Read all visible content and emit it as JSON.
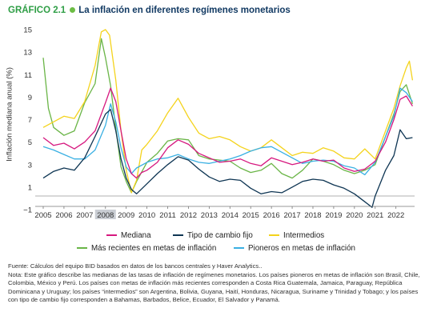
{
  "header": {
    "label": "GRÁFICO 2.1",
    "title": "La inflación en diferentes regímenes monetarios"
  },
  "chart_data": {
    "type": "line",
    "title": "La inflación en diferentes regímenes monetarios",
    "xlabel": "",
    "ylabel": "Inflación mediana anual (%)",
    "ylim": [
      -1,
      15
    ],
    "xlim": [
      2005,
      2022.9
    ],
    "yticks": [
      -1,
      1,
      3,
      5,
      7,
      9,
      11,
      13,
      15
    ],
    "xticks": [
      "2005",
      "2006",
      "2007",
      "2008",
      "2009",
      "2010",
      "2011",
      "2012",
      "2013",
      "2014",
      "2015",
      "2016",
      "2017",
      "2018",
      "2019",
      "2020",
      "2021",
      "2022"
    ],
    "highlighted_tick": "2008",
    "grid": false,
    "legend_position": "bottom",
    "series": [
      {
        "name": "Mediana",
        "color": "#d6187f",
        "points": [
          [
            2005,
            5.4
          ],
          [
            2005.5,
            4.7
          ],
          [
            2006,
            4.9
          ],
          [
            2006.5,
            4.4
          ],
          [
            2007,
            5
          ],
          [
            2007.5,
            6
          ],
          [
            2008,
            8.5
          ],
          [
            2008.25,
            9.8
          ],
          [
            2008.5,
            8.6
          ],
          [
            2008.75,
            6
          ],
          [
            2009,
            3.5
          ],
          [
            2009.25,
            2.2
          ],
          [
            2009.5,
            1.8
          ],
          [
            2009.75,
            2.3
          ],
          [
            2010,
            2.5
          ],
          [
            2010.5,
            3.2
          ],
          [
            2011,
            4.5
          ],
          [
            2011.5,
            5.2
          ],
          [
            2012,
            4.8
          ],
          [
            2012.5,
            4
          ],
          [
            2013,
            3.6
          ],
          [
            2013.5,
            3.2
          ],
          [
            2014,
            3.3
          ],
          [
            2014.5,
            3.5
          ],
          [
            2015,
            3.1
          ],
          [
            2015.5,
            2.9
          ],
          [
            2016,
            3.6
          ],
          [
            2016.5,
            3.3
          ],
          [
            2017,
            3
          ],
          [
            2017.5,
            3.2
          ],
          [
            2018,
            3.5
          ],
          [
            2018.5,
            3.3
          ],
          [
            2019,
            3.4
          ],
          [
            2019.5,
            2.7
          ],
          [
            2020,
            2.4
          ],
          [
            2020.5,
            2.6
          ],
          [
            2021,
            3.3
          ],
          [
            2021.5,
            5
          ],
          [
            2021.9,
            7
          ],
          [
            2022.2,
            8.8
          ],
          [
            2022.5,
            9.1
          ],
          [
            2022.8,
            8.2
          ]
        ]
      },
      {
        "name": "Tipo de cambio fijo",
        "color": "#0e3553",
        "points": [
          [
            2005,
            1.8
          ],
          [
            2005.5,
            2.4
          ],
          [
            2006,
            2.7
          ],
          [
            2006.5,
            2.5
          ],
          [
            2007,
            3.6
          ],
          [
            2007.5,
            5.5
          ],
          [
            2008,
            7.5
          ],
          [
            2008.25,
            7.9
          ],
          [
            2008.5,
            6
          ],
          [
            2008.75,
            3.5
          ],
          [
            2009,
            1.8
          ],
          [
            2009.25,
            0.8
          ],
          [
            2009.5,
            0.4
          ],
          [
            2010,
            1.3
          ],
          [
            2010.5,
            2.2
          ],
          [
            2011,
            3
          ],
          [
            2011.5,
            3.7
          ],
          [
            2012,
            3.4
          ],
          [
            2012.5,
            2.6
          ],
          [
            2013,
            1.9
          ],
          [
            2013.5,
            1.5
          ],
          [
            2014,
            1.7
          ],
          [
            2014.5,
            1.6
          ],
          [
            2015,
            0.9
          ],
          [
            2015.5,
            0.4
          ],
          [
            2016,
            0.6
          ],
          [
            2016.5,
            0.5
          ],
          [
            2017,
            1
          ],
          [
            2017.5,
            1.5
          ],
          [
            2018,
            1.7
          ],
          [
            2018.5,
            1.6
          ],
          [
            2019,
            1.2
          ],
          [
            2019.5,
            0.9
          ],
          [
            2020,
            0.4
          ],
          [
            2020.5,
            -0.3
          ],
          [
            2020.85,
            -0.8
          ],
          [
            2021,
            0.2
          ],
          [
            2021.5,
            2.5
          ],
          [
            2021.9,
            3.8
          ],
          [
            2022.2,
            6.1
          ],
          [
            2022.5,
            5.3
          ],
          [
            2022.8,
            5.4
          ]
        ]
      },
      {
        "name": "Intermedios",
        "color": "#f4d31c",
        "points": [
          [
            2005,
            6.3
          ],
          [
            2005.5,
            6.8
          ],
          [
            2006,
            7.3
          ],
          [
            2006.5,
            7.1
          ],
          [
            2007,
            8.6
          ],
          [
            2007.5,
            11.8
          ],
          [
            2007.8,
            14.8
          ],
          [
            2008,
            15
          ],
          [
            2008.2,
            14.5
          ],
          [
            2008.5,
            10.5
          ],
          [
            2008.75,
            6
          ],
          [
            2009,
            2.5
          ],
          [
            2009.25,
            0.5
          ],
          [
            2009.5,
            1.6
          ],
          [
            2009.75,
            4.3
          ],
          [
            2010,
            4.8
          ],
          [
            2010.5,
            6
          ],
          [
            2011,
            7.6
          ],
          [
            2011.5,
            8.9
          ],
          [
            2012,
            7.2
          ],
          [
            2012.5,
            5.8
          ],
          [
            2013,
            5.3
          ],
          [
            2013.5,
            5.5
          ],
          [
            2014,
            5.2
          ],
          [
            2014.5,
            4.6
          ],
          [
            2015,
            4.2
          ],
          [
            2015.5,
            4.5
          ],
          [
            2016,
            5.2
          ],
          [
            2016.5,
            4.5
          ],
          [
            2017,
            3.8
          ],
          [
            2017.5,
            4.1
          ],
          [
            2018,
            4
          ],
          [
            2018.5,
            4.5
          ],
          [
            2019,
            4.2
          ],
          [
            2019.5,
            3.6
          ],
          [
            2020,
            3.5
          ],
          [
            2020.5,
            4.4
          ],
          [
            2021,
            3.5
          ],
          [
            2021.5,
            6
          ],
          [
            2021.9,
            8
          ],
          [
            2022.2,
            10
          ],
          [
            2022.5,
            11.6
          ],
          [
            2022.65,
            12.2
          ],
          [
            2022.8,
            10.5
          ]
        ]
      },
      {
        "name": "Más recientes en metas de inflación",
        "color": "#6ab547",
        "points": [
          [
            2005,
            12.5
          ],
          [
            2005.25,
            8
          ],
          [
            2005.5,
            6.3
          ],
          [
            2006,
            5.6
          ],
          [
            2006.5,
            6
          ],
          [
            2007,
            8.5
          ],
          [
            2007.5,
            10.2
          ],
          [
            2007.8,
            14.2
          ],
          [
            2008,
            12.5
          ],
          [
            2008.25,
            10
          ],
          [
            2008.5,
            6.2
          ],
          [
            2008.75,
            2.8
          ],
          [
            2009,
            1.5
          ],
          [
            2009.25,
            0.5
          ],
          [
            2009.5,
            1.5
          ],
          [
            2010,
            3.2
          ],
          [
            2010.5,
            4
          ],
          [
            2011,
            5.1
          ],
          [
            2011.5,
            5.3
          ],
          [
            2012,
            5.2
          ],
          [
            2012.5,
            3.8
          ],
          [
            2013,
            3.5
          ],
          [
            2013.5,
            3.4
          ],
          [
            2014,
            3.3
          ],
          [
            2014.5,
            2.7
          ],
          [
            2015,
            2.3
          ],
          [
            2015.5,
            2.5
          ],
          [
            2016,
            3.1
          ],
          [
            2016.5,
            2.2
          ],
          [
            2017,
            1.8
          ],
          [
            2017.5,
            2.5
          ],
          [
            2018,
            3.5
          ],
          [
            2018.5,
            3.3
          ],
          [
            2019,
            3
          ],
          [
            2019.5,
            2.5
          ],
          [
            2020,
            2.2
          ],
          [
            2020.5,
            2.5
          ],
          [
            2021,
            3
          ],
          [
            2021.5,
            5.5
          ],
          [
            2021.9,
            7.5
          ],
          [
            2022.2,
            9.5
          ],
          [
            2022.5,
            10.1
          ],
          [
            2022.8,
            8.4
          ]
        ]
      },
      {
        "name": "Pioneros en metas de inflación",
        "color": "#3ab0e3",
        "points": [
          [
            2005,
            4.6
          ],
          [
            2005.5,
            4.3
          ],
          [
            2006,
            3.9
          ],
          [
            2006.5,
            3.5
          ],
          [
            2007,
            3.5
          ],
          [
            2007.5,
            4.3
          ],
          [
            2008,
            6.5
          ],
          [
            2008.25,
            8.4
          ],
          [
            2008.5,
            6.8
          ],
          [
            2008.75,
            4.5
          ],
          [
            2009,
            2.8
          ],
          [
            2009.25,
            2.2
          ],
          [
            2009.5,
            2.7
          ],
          [
            2010,
            3.2
          ],
          [
            2010.5,
            3.5
          ],
          [
            2011,
            3.6
          ],
          [
            2011.5,
            3.9
          ],
          [
            2012,
            3.5
          ],
          [
            2012.5,
            3.2
          ],
          [
            2013,
            3.1
          ],
          [
            2013.5,
            3.3
          ],
          [
            2014,
            3.5
          ],
          [
            2014.5,
            3.8
          ],
          [
            2015,
            4.2
          ],
          [
            2015.5,
            4.5
          ],
          [
            2016,
            4.6
          ],
          [
            2016.5,
            4.1
          ],
          [
            2017,
            3.6
          ],
          [
            2017.5,
            3.1
          ],
          [
            2018,
            3.3
          ],
          [
            2018.5,
            3.4
          ],
          [
            2019,
            3.3
          ],
          [
            2019.5,
            2.9
          ],
          [
            2020,
            2.7
          ],
          [
            2020.5,
            2.1
          ],
          [
            2021,
            3.2
          ],
          [
            2021.5,
            5.5
          ],
          [
            2021.9,
            7.3
          ],
          [
            2022.2,
            9.8
          ],
          [
            2022.5,
            9.4
          ],
          [
            2022.8,
            8.6
          ]
        ]
      }
    ]
  },
  "legend": {
    "row1": [
      "Mediana",
      "Tipo de cambio fijo",
      "Intermedios"
    ],
    "row2": [
      "Más recientes en metas de inflación",
      "Pioneros en metas de inflación"
    ]
  },
  "notes": {
    "source": "Fuente: Cálculos del equipo BID basados en datos de los bancos centrales y Haver Analytics..",
    "note": "Nota: Este gráfico describe las medianas de las tasas de inflación de regímenes monetarios. Los países pioneros en metas de inflación son Brasil, Chile, Colombia, México y Perú. Los países con metas de inflación más recientes corresponden a Costa Rica Guatemala, Jamaica, Paraguay, República Dominicana y Uruguay; los países “intermedios” son Argentina, Bolivia, Guyana, Haití, Honduras, Nicaragua, Suriname y Trinidad y Tobago; y los países con tipo de cambio fijo corresponden a Bahamas, Barbados, Belice, Ecuador, El Salvador y Panamá."
  }
}
